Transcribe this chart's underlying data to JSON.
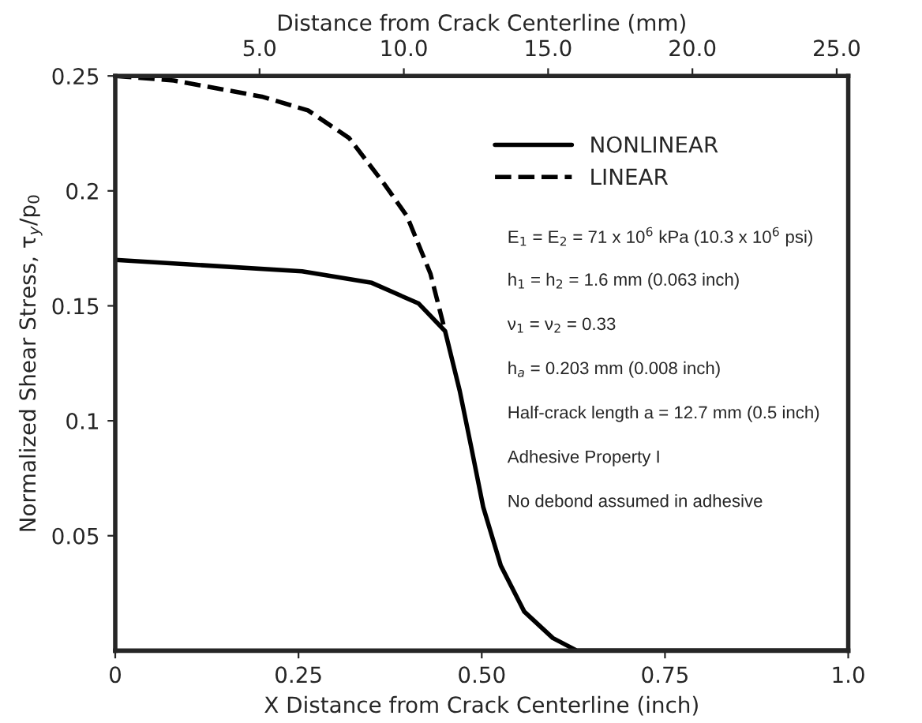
{
  "chart_data": {
    "type": "line",
    "xlabel": "X Distance from Crack Centerline (inch)",
    "ylabel": "Normalized Shear Stress, τ$_{y}$/p$_{0}$",
    "x2label": "Distance from Crack Centerline (mm)",
    "series": [
      {
        "name": "NONLINEAR",
        "color": "#000000",
        "line_style": "solid",
        "x": [
          0,
          0.255,
          0.35,
          0.414,
          0.45,
          0.47,
          0.486,
          0.502,
          0.526,
          0.558,
          0.597,
          0.63,
          0.75,
          1.0
        ],
        "values": [
          0.17,
          0.165,
          0.16,
          0.151,
          0.139,
          0.113,
          0.088,
          0.0625,
          0.037,
          0.017,
          0.0055,
          0,
          0,
          0
        ]
      },
      {
        "name": "LINEAR",
        "color": "#000000",
        "line_style": "dashed",
        "x": [
          0,
          0.08,
          0.2,
          0.263,
          0.319,
          0.367,
          0.398,
          0.43,
          0.45
        ],
        "values": [
          0.25,
          0.248,
          0.241,
          0.235,
          0.223,
          0.203,
          0.189,
          0.164,
          0.139
        ]
      }
    ],
    "xlim": [
      0,
      1.0
    ],
    "xticks": [
      0,
      {
        "value": 0.25,
        "label": "0.25"
      },
      {
        "value": 0.5,
        "label": "0.50"
      },
      {
        "value": 0.75,
        "label": "0.75"
      },
      {
        "value": 1.0,
        "label": "1.0"
      }
    ],
    "ylim": [
      0,
      0.25
    ],
    "yticks": [
      0.05,
      0.1,
      0.15,
      0.2,
      0.25
    ],
    "x2lim": [
      0,
      25.4
    ],
    "x2ticks": [
      {
        "value": 5,
        "label": "5.0"
      },
      {
        "value": 10,
        "label": "10.0"
      },
      {
        "value": 15,
        "label": "15.0"
      },
      {
        "value": 20,
        "label": "20.0"
      },
      {
        "value": 25,
        "label": "25.0"
      }
    ],
    "annotations": [
      "E$_{1}$ = E$_{2}$ = 71 x 10$^{6}$ kPa (10.3 x 10$^{6}$ psi)",
      "h$_{1}$ = h$_{2}$ = 1.6 mm (0.063 inch)",
      "ν$_{1}$ = ν$_{2}$ = 0.33",
      "h$_{a}$ = 0.203 mm (0.008 inch)",
      "Half-crack length a = 12.7 mm (0.5 inch)",
      "Adhesive Property I",
      "No debond assumed in adhesive"
    ],
    "legend": "top right",
    "grid": false,
    "marker": "none"
  }
}
